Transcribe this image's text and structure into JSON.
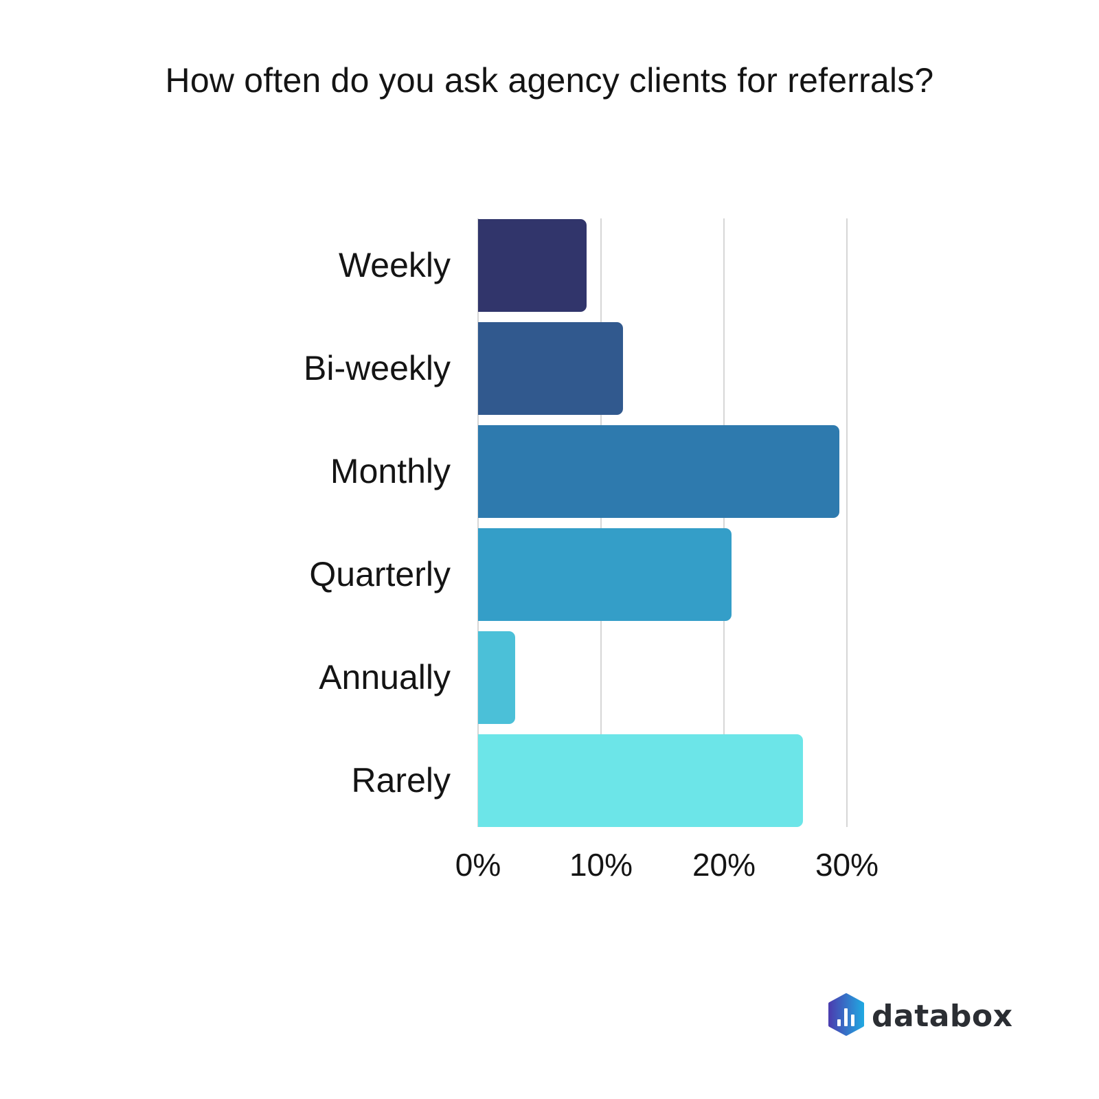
{
  "title": "How often do you ask agency clients for referrals?",
  "logo": {
    "text": "databox",
    "icon": "databox-logo-icon"
  },
  "axis": {
    "ticks": [
      "0%",
      "10%",
      "20%",
      "30%"
    ]
  },
  "bars": [
    {
      "label": "Weekly",
      "value": 8.8,
      "color": "#31356b"
    },
    {
      "label": "Bi-weekly",
      "value": 11.8,
      "color": "#31598e"
    },
    {
      "label": "Monthly",
      "value": 29.4,
      "color": "#2e7aae"
    },
    {
      "label": "Quarterly",
      "value": 20.6,
      "color": "#349ec8"
    },
    {
      "label": "Annually",
      "value": 3.0,
      "color": "#4bc0d8"
    },
    {
      "label": "Rarely",
      "value": 26.4,
      "color": "#6ce5e8"
    }
  ],
  "chart_data": {
    "type": "bar",
    "orientation": "horizontal",
    "title": "How often do you ask agency clients for referrals?",
    "categories": [
      "Weekly",
      "Bi-weekly",
      "Monthly",
      "Quarterly",
      "Annually",
      "Rarely"
    ],
    "values": [
      8.8,
      11.8,
      29.4,
      20.6,
      3.0,
      26.4
    ],
    "unit": "%",
    "xlabel": "",
    "ylabel": "",
    "xlim": [
      0,
      30
    ],
    "xticks": [
      "0%",
      "10%",
      "20%",
      "30%"
    ],
    "grid": true,
    "legend": null,
    "colors": [
      "#31356b",
      "#31598e",
      "#2e7aae",
      "#349ec8",
      "#4bc0d8",
      "#6ce5e8"
    ]
  }
}
